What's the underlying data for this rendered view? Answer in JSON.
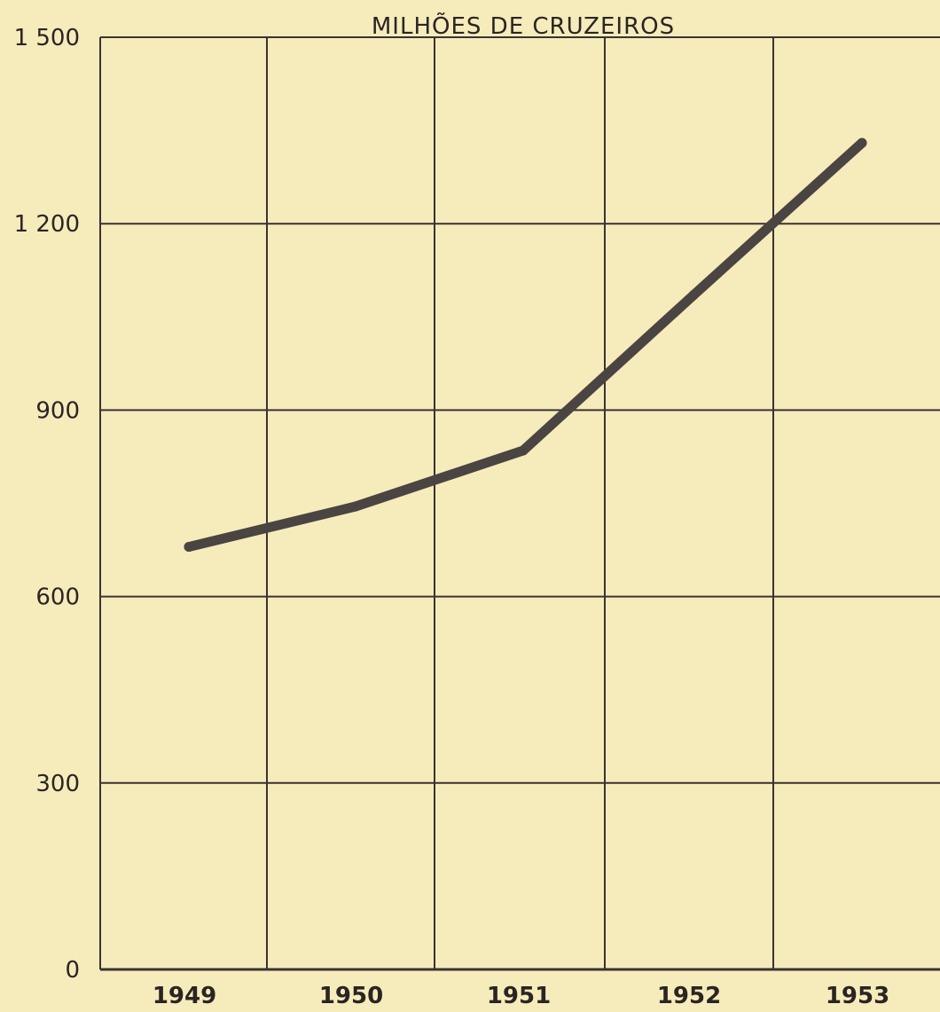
{
  "chart_data": {
    "type": "line",
    "title": "MILHÕES DE CRUZEIROS",
    "xlabel": "",
    "ylabel": "",
    "categories": [
      "1949",
      "1950",
      "1951",
      "1952",
      "1953"
    ],
    "y_tick_labels": [
      "0",
      "300",
      "600",
      "900",
      "1 200",
      "1 500"
    ],
    "y_tick_values": [
      0,
      300,
      600,
      900,
      1200,
      1500
    ],
    "ylim": [
      0,
      1500
    ],
    "grid": true,
    "series": [
      {
        "values": [
          680,
          745,
          835,
          1085,
          1330
        ]
      }
    ],
    "colors": {
      "background": "#f6ebbb",
      "line": "#4a4442",
      "grid": "#3a3330"
    }
  }
}
